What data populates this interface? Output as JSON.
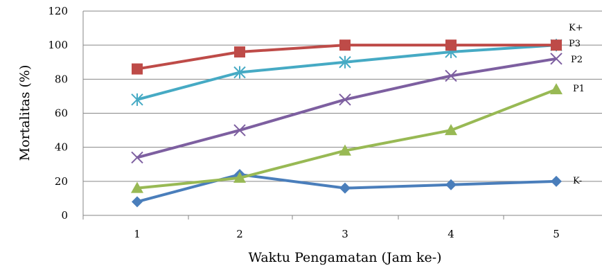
{
  "chart_data": {
    "type": "line",
    "xlabel": "Waktu Pengamatan (Jam ke-)",
    "ylabel": "Mortalitas (%)",
    "categories": [
      "1",
      "2",
      "3",
      "4",
      "5"
    ],
    "ylim": [
      0,
      120
    ],
    "yticks": [
      "0",
      "20",
      "40",
      "60",
      "80",
      "100",
      "120"
    ],
    "grid": "horizontal",
    "legend": "direct labels at line ends",
    "series": [
      {
        "name": "K-",
        "color": "#4a7ebb",
        "marker": "diamond",
        "values": [
          8,
          24,
          16,
          18,
          20
        ]
      },
      {
        "name": "P1",
        "color": "#98b954",
        "marker": "triangle",
        "values": [
          16,
          22,
          38,
          50,
          74
        ]
      },
      {
        "name": "P2",
        "color": "#7d5fa0",
        "marker": "x",
        "values": [
          34,
          50,
          68,
          82,
          92
        ]
      },
      {
        "name": "P3",
        "color": "#46aac4",
        "marker": "asterisk",
        "values": [
          68,
          84,
          90,
          96,
          100
        ]
      },
      {
        "name": "K+",
        "color": "#be4b48",
        "marker": "square",
        "values": [
          86,
          96,
          100,
          100,
          100
        ]
      }
    ]
  }
}
